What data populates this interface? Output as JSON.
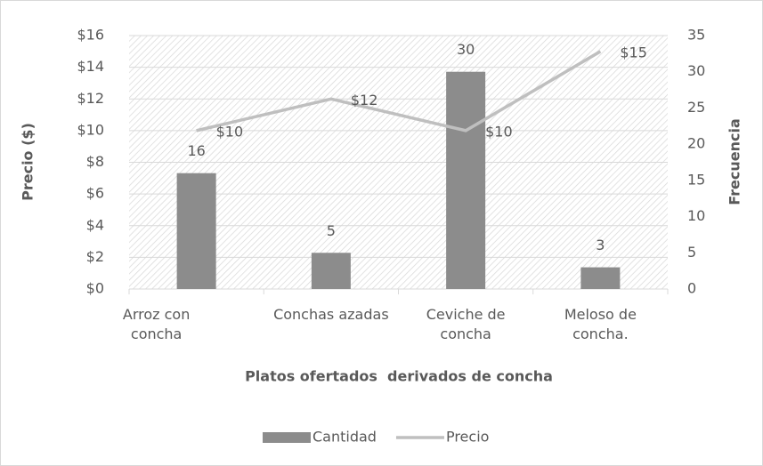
{
  "chart_data": {
    "type": "bar-line",
    "x_label": "Platos ofertados  derivados de concha",
    "y_label": "Precio ($)",
    "y2_label": "Frecuencia",
    "categories": [
      "Arroz con concha",
      "Conchas azadas",
      "Ceviche de concha",
      "Meloso de concha."
    ],
    "series": [
      {
        "name": "Cantidad",
        "type": "bar",
        "color": "#8c8c8c",
        "axis": "y2",
        "values": [
          16,
          5,
          30,
          3
        ]
      },
      {
        "name": "Precio",
        "type": "line",
        "color": "#bfbfbf",
        "values": [
          10,
          12,
          10,
          15
        ],
        "value_labels": [
          "$10",
          "$12",
          "$10",
          "$15"
        ]
      }
    ],
    "ylim": [
      0,
      16
    ],
    "yticks": [
      {
        "value": 0,
        "label": "$0"
      },
      {
        "value": 2,
        "label": "$2"
      },
      {
        "value": 4,
        "label": "$4"
      },
      {
        "value": 6,
        "label": "$6"
      },
      {
        "value": 8,
        "label": "$8"
      },
      {
        "value": 10,
        "label": "$10"
      },
      {
        "value": 12,
        "label": "$12"
      },
      {
        "value": 14,
        "label": "$14"
      },
      {
        "value": 16,
        "label": "$16"
      }
    ],
    "y2lim": [
      0,
      35
    ],
    "y2ticks": [
      0,
      5,
      10,
      15,
      20,
      25,
      30,
      35
    ],
    "grid": true,
    "legend": "bottom"
  }
}
